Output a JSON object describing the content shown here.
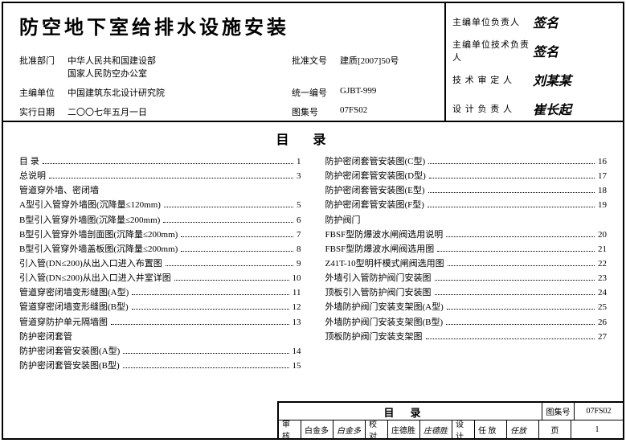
{
  "header": {
    "title": "防空地下室给排水设施安装",
    "rows": [
      {
        "l1": "批准部门",
        "v1": "中华人民共和国建设部\n国家人民防空办公室",
        "l2": "批准文号",
        "v2": "建质[2007]50号"
      },
      {
        "l1": "主编单位",
        "v1": "中国建筑东北设计研究院",
        "l2": "统一编号",
        "v2": "GJBT-999"
      },
      {
        "l1": "实行日期",
        "v1": "二〇〇七年五月一日",
        "l2": "图集号",
        "v2": "07FS02"
      }
    ],
    "sigs": [
      {
        "label": "主编单位负责人",
        "sig": "签名"
      },
      {
        "label": "主编单位技术负责人",
        "sig": "签名"
      },
      {
        "label": "技 术 审 定 人",
        "sig": "刘某某"
      },
      {
        "label": "设 计 负 责 人",
        "sig": "崔长起"
      }
    ]
  },
  "toc": {
    "title": "目录",
    "left": [
      {
        "t": "目  录",
        "p": "1"
      },
      {
        "t": "总说明",
        "p": "3"
      },
      {
        "t": "管道穿外墙、密闭墙",
        "section": true
      },
      {
        "t": "A型引入管穿外墙图(沉降量≤120mm)",
        "p": "5"
      },
      {
        "t": "B型引入管穿外墙图(沉降量≤200mm)",
        "p": "6"
      },
      {
        "t": "B型引入管穿外墙剖面图(沉降量≤200mm)",
        "p": "7"
      },
      {
        "t": "B型引入管穿外墙盖板图(沉降量≤200mm)",
        "p": "8"
      },
      {
        "t": "引入管(DN≤200)从出入口进入布置图",
        "p": "9"
      },
      {
        "t": "引入管(DN≤200)从出入口进入井室详图",
        "p": "10"
      },
      {
        "t": "管道穿密闭墙变形缝图(A型)",
        "p": "11"
      },
      {
        "t": "管道穿密闭墙变形缝图(B型)",
        "p": "12"
      },
      {
        "t": "管道穿防护单元隔墙图",
        "p": "13"
      },
      {
        "t": "防护密闭套管",
        "section": true
      },
      {
        "t": "防护密闭套管安装图(A型)",
        "p": "14"
      },
      {
        "t": "防护密闭套管安装图(B型)",
        "p": "15"
      }
    ],
    "right": [
      {
        "t": "防护密闭套管安装图(C型)",
        "p": "16"
      },
      {
        "t": "防护密闭套管安装图(D型)",
        "p": "17"
      },
      {
        "t": "防护密闭套管安装图(E型)",
        "p": "18"
      },
      {
        "t": "防护密闭套管安装图(F型)",
        "p": "19"
      },
      {
        "t": "防护阀门",
        "section": true
      },
      {
        "t": "FBSF型防爆波水闸阀选用说明",
        "p": "20"
      },
      {
        "t": "FBSF型防爆波水闸阀选用图",
        "p": "21"
      },
      {
        "t": "Z41T-10型明杆模式闸阀选用图",
        "p": "22"
      },
      {
        "t": "外墙引入管防护阀门安装图",
        "p": "23"
      },
      {
        "t": "顶板引入管防护阀门安装图",
        "p": "24"
      },
      {
        "t": "外墙防护阀门安装支架图(A型)",
        "p": "25"
      },
      {
        "t": "外墙防护阀门安装支架图(B型)",
        "p": "26"
      },
      {
        "t": "顶板防护阀门安装支架图",
        "p": "27"
      }
    ]
  },
  "footer": {
    "title": "目录",
    "set_label": "图集号",
    "set": "07FS02",
    "page_label": "页",
    "page": "1",
    "cells": [
      {
        "l": "审核",
        "n": "白金多",
        "s": "白金多"
      },
      {
        "l": "校对",
        "n": "庄德胜",
        "s": "庄德胜"
      },
      {
        "l": "设计",
        "n": "任  放",
        "s": "任放"
      }
    ]
  }
}
